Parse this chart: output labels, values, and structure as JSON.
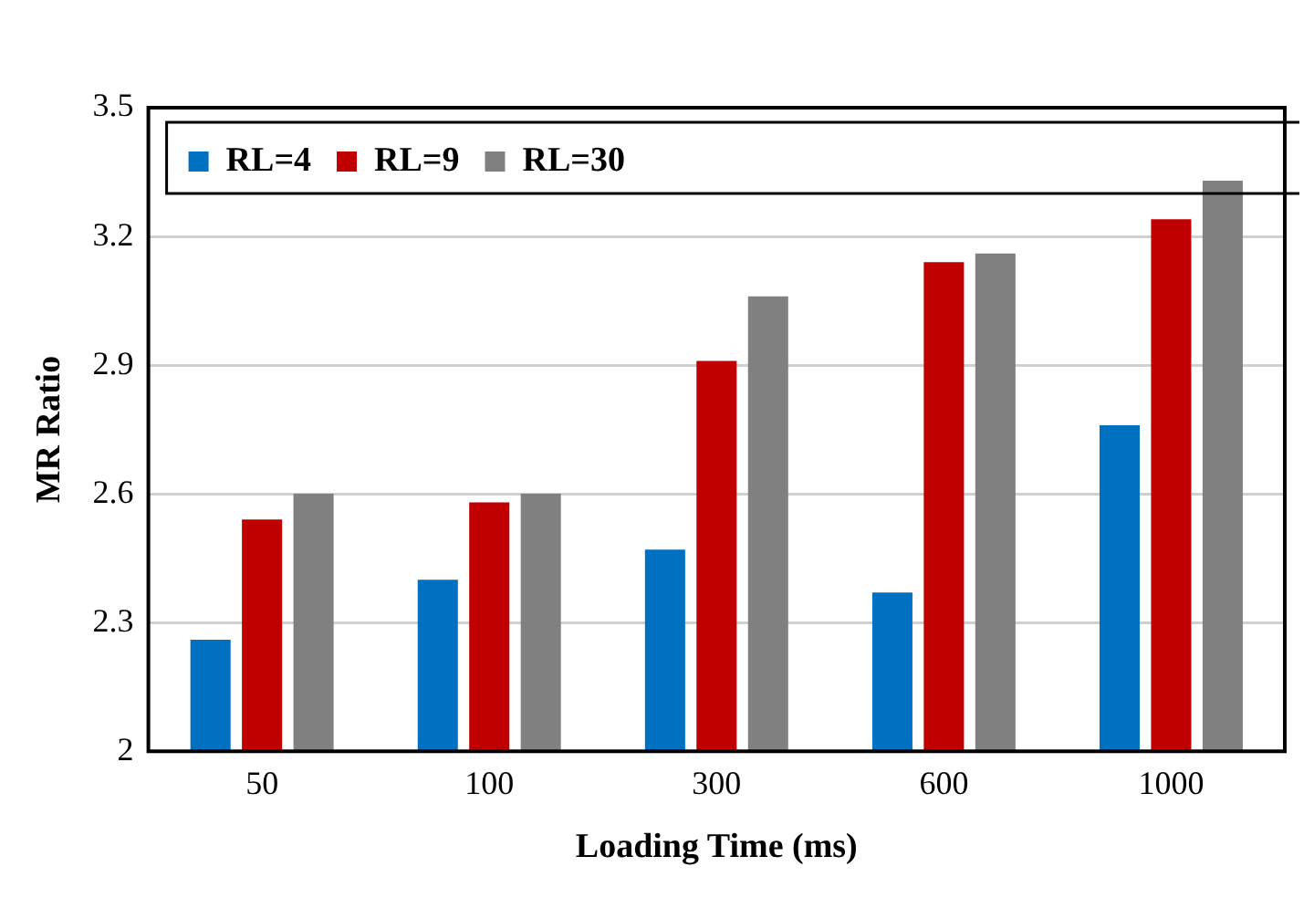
{
  "chart_data": {
    "type": "bar",
    "xlabel": "Loading Time (ms)",
    "ylabel": "MR Ratio",
    "categories": [
      "50",
      "100",
      "300",
      "600",
      "1000"
    ],
    "series": [
      {
        "name": "RL=4",
        "color": "#0070c0",
        "values": [
          2.26,
          2.4,
          2.47,
          2.37,
          2.76
        ]
      },
      {
        "name": "RL=9",
        "color": "#c00000",
        "values": [
          2.54,
          2.58,
          2.91,
          3.14,
          3.24
        ]
      },
      {
        "name": "RL=30",
        "color": "#808080",
        "values": [
          2.6,
          2.6,
          3.06,
          3.16,
          3.33
        ]
      }
    ],
    "ylim": [
      2,
      3.5
    ],
    "yticks": [
      {
        "value": 2,
        "label": "2"
      },
      2.3,
      2.6,
      2.9,
      3.2,
      3.5
    ],
    "grid": "y",
    "legend": "top left"
  }
}
